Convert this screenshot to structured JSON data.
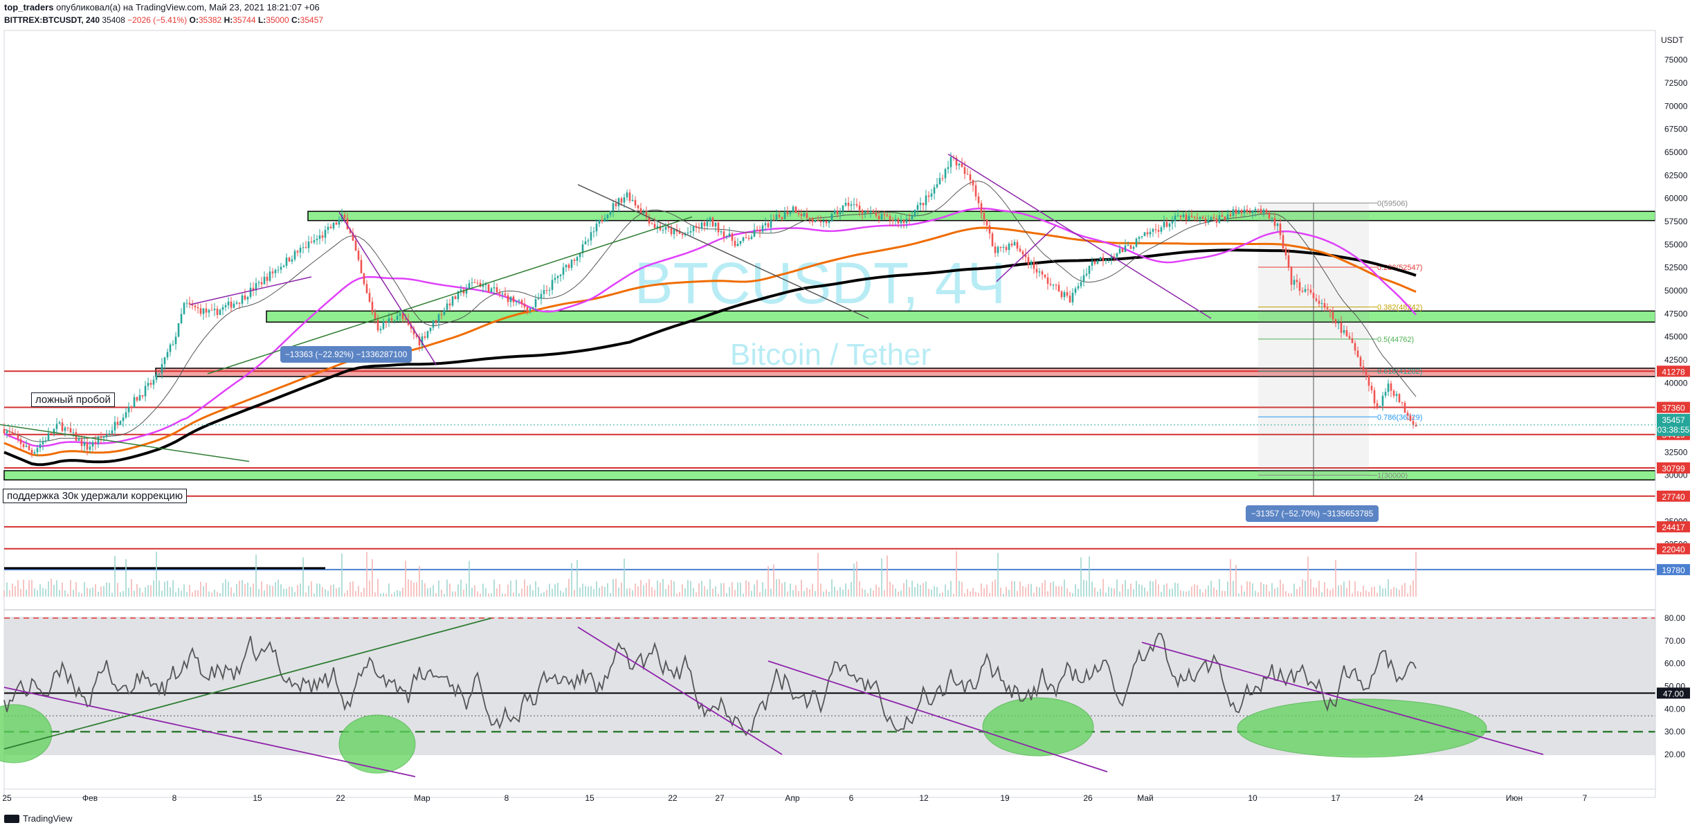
{
  "header": {
    "user": "top_traders",
    "published": "опубликовал(а) на TradingView.com, Май 23, 2021 18:21:07 +06",
    "symbol": "BITTREX:BTCUSDT, 240",
    "last": "35408",
    "change": "−2026 (−5.41%)",
    "o_label": "O:",
    "o": "35382",
    "h_label": "H:",
    "h": "35744",
    "l_label": "L:",
    "l": "35000",
    "c_label": "C:",
    "c": "35457"
  },
  "watermark": {
    "symbol": "BTCUSDT, 4Ч",
    "name": "Bitcoin / Tether"
  },
  "annotations": {
    "false_break": "ложный пробой",
    "support_note": "поддержка 30к удержали коррекцию",
    "measure_1": "−13363 (−22.92%) −1336287100",
    "measure_2": "−31357 (−52.70%) −3135653785"
  },
  "fib_labels": [
    "0(59506)",
    "0.236(52547)",
    "0.382(48242)",
    "0.5(44762)",
    "0.618(41282)",
    "0.786(36329)",
    "1(30000)"
  ],
  "price_axis": {
    "currency": "USDT",
    "ticks": [
      "75000",
      "72500",
      "70000",
      "67500",
      "65000",
      "62500",
      "60000",
      "57500",
      "55000",
      "52500",
      "50000",
      "47500",
      "45000",
      "42500",
      "40000",
      "32500",
      "30000",
      "25000",
      "22500"
    ],
    "badges": [
      {
        "value": "41278",
        "color": "#e53935"
      },
      {
        "value": "37360",
        "color": "#e53935"
      },
      {
        "value": "34419",
        "color": "#e53935"
      },
      {
        "value": "30799",
        "color": "#e53935"
      },
      {
        "value": "27740",
        "color": "#e53935"
      },
      {
        "value": "24417",
        "color": "#e53935"
      },
      {
        "value": "22040",
        "color": "#e53935"
      },
      {
        "value": "19780",
        "color": "#4a7fd0"
      }
    ],
    "current_price": "35457",
    "countdown": "03:38:55"
  },
  "rsi_axis": {
    "ticks": [
      "80.00",
      "70.00",
      "60.00",
      "50.00",
      "40.00",
      "30.00",
      "20.00"
    ],
    "badge": "47.00"
  },
  "time_axis": [
    "25",
    "Фев",
    "8",
    "15",
    "22",
    "Мар",
    "8",
    "15",
    "22",
    "27",
    "Апр",
    "6",
    "12",
    "19",
    "26",
    "Май",
    "10",
    "17",
    "24",
    "Июн",
    "7"
  ],
  "footer": {
    "brand": "TradingView"
  },
  "colors": {
    "zone_green": "#90ee90",
    "zone_red": "#f4a4a4",
    "level_red": "#d32f2f",
    "sma200": "#000000",
    "ema_orange": "#ef6c00",
    "ema_magenta": "#e040fb",
    "up": "#26a69a",
    "down": "#ef5350"
  },
  "chart_data": {
    "type": "candlestick",
    "symbol": "BITTREX:BTCUSDT",
    "timeframe": "240",
    "ylim": [
      18500,
      77000
    ],
    "rsi_ylim": [
      17,
      83
    ],
    "price_path": [
      [
        0,
        35000
      ],
      [
        40,
        32500
      ],
      [
        80,
        35500
      ],
      [
        120,
        33000
      ],
      [
        150,
        34500
      ],
      [
        180,
        37500
      ],
      [
        220,
        40500
      ],
      [
        250,
        45500
      ],
      [
        260,
        48500
      ],
      [
        300,
        47500
      ],
      [
        340,
        49000
      ],
      [
        380,
        51500
      ],
      [
        420,
        54000
      ],
      [
        460,
        56000
      ],
      [
        490,
        58000
      ],
      [
        500,
        56500
      ],
      [
        520,
        50500
      ],
      [
        540,
        46000
      ],
      [
        570,
        47500
      ],
      [
        600,
        44500
      ],
      [
        640,
        48500
      ],
      [
        680,
        51000
      ],
      [
        720,
        49500
      ],
      [
        760,
        48000
      ],
      [
        800,
        51500
      ],
      [
        840,
        55000
      ],
      [
        870,
        58500
      ],
      [
        900,
        60500
      ],
      [
        940,
        57000
      ],
      [
        980,
        56000
      ],
      [
        1020,
        57500
      ],
      [
        1060,
        55000
      ],
      [
        1100,
        57000
      ],
      [
        1140,
        59000
      ],
      [
        1180,
        57000
      ],
      [
        1220,
        59500
      ],
      [
        1260,
        58000
      ],
      [
        1300,
        57500
      ],
      [
        1340,
        60500
      ],
      [
        1370,
        64500
      ],
      [
        1400,
        61500
      ],
      [
        1430,
        54500
      ],
      [
        1460,
        55000
      ],
      [
        1500,
        51500
      ],
      [
        1540,
        49000
      ],
      [
        1570,
        53000
      ],
      [
        1620,
        54500
      ],
      [
        1660,
        56500
      ],
      [
        1700,
        58000
      ],
      [
        1740,
        57500
      ],
      [
        1780,
        58500
      ],
      [
        1810,
        59000
      ],
      [
        1840,
        57000
      ],
      [
        1860,
        51000
      ],
      [
        1890,
        49500
      ],
      [
        1920,
        47000
      ],
      [
        1950,
        44000
      ],
      [
        1970,
        40500
      ],
      [
        1985,
        37000
      ],
      [
        2000,
        40000
      ],
      [
        2020,
        37500
      ],
      [
        2040,
        35457
      ]
    ],
    "levels": [
      41278,
      37360,
      34419,
      30799,
      27740,
      24417,
      22040,
      19780
    ],
    "zones": [
      [
        57600,
        58600
      ],
      [
        46600,
        47800
      ],
      [
        40700,
        41600
      ],
      [
        29500,
        30500
      ]
    ],
    "fib": [
      {
        "ratio": "0",
        "price": 59506
      },
      {
        "ratio": "0.236",
        "price": 52547
      },
      {
        "ratio": "0.382",
        "price": 48242
      },
      {
        "ratio": "0.5",
        "price": 44762
      },
      {
        "ratio": "0.618",
        "price": 41282
      },
      {
        "ratio": "0.786",
        "price": 36329
      },
      {
        "ratio": "1",
        "price": 30000
      }
    ],
    "rsi_levels": [
      80,
      47,
      30
    ]
  }
}
